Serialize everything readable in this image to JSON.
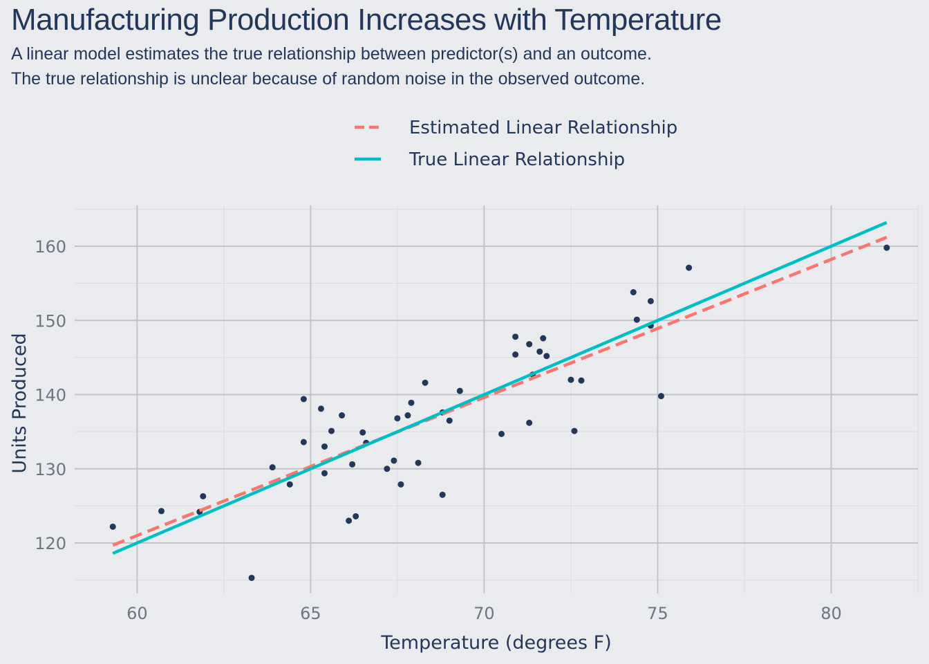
{
  "chart_data": {
    "type": "scatter",
    "title": "Manufacturing Production Increases with Temperature",
    "subtitle_lines": [
      "A linear model estimates the true relationship between predictor(s) and an outcome.",
      "The true relationship is unclear because of random noise in the observed outcome."
    ],
    "xlabel": "Temperature (degrees F)",
    "ylabel": "Units Produced",
    "xlim": [
      58.2,
      82.5
    ],
    "ylim": [
      113.2,
      165.5
    ],
    "x_ticks": [
      60,
      65,
      70,
      75,
      80
    ],
    "y_ticks": [
      120,
      130,
      140,
      150,
      160
    ],
    "x_tick_labels": [
      "60",
      "65",
      "70",
      "75",
      "80"
    ],
    "y_tick_labels": [
      "120",
      "130",
      "140",
      "150",
      "160"
    ],
    "grid": true,
    "legend_position": "top",
    "legend": [
      {
        "label": "Estimated Linear Relationship",
        "color": "#F8766D",
        "style": "dashed"
      },
      {
        "label": "True Linear Relationship",
        "color": "#00BFC4",
        "style": "solid"
      }
    ],
    "points_color": "#22375A",
    "points": [
      {
        "x": 59.3,
        "y": 122.2
      },
      {
        "x": 60.7,
        "y": 124.3
      },
      {
        "x": 61.8,
        "y": 124.2
      },
      {
        "x": 61.9,
        "y": 126.3
      },
      {
        "x": 63.3,
        "y": 115.3
      },
      {
        "x": 63.9,
        "y": 130.2
      },
      {
        "x": 64.4,
        "y": 127.9
      },
      {
        "x": 64.8,
        "y": 133.6
      },
      {
        "x": 64.8,
        "y": 139.4
      },
      {
        "x": 65.3,
        "y": 138.1
      },
      {
        "x": 65.4,
        "y": 133.0
      },
      {
        "x": 65.4,
        "y": 129.4
      },
      {
        "x": 65.6,
        "y": 135.1
      },
      {
        "x": 65.9,
        "y": 137.2
      },
      {
        "x": 66.1,
        "y": 123.0
      },
      {
        "x": 66.2,
        "y": 130.6
      },
      {
        "x": 66.3,
        "y": 123.6
      },
      {
        "x": 66.5,
        "y": 134.9
      },
      {
        "x": 66.6,
        "y": 133.5
      },
      {
        "x": 67.2,
        "y": 130.0
      },
      {
        "x": 67.4,
        "y": 131.1
      },
      {
        "x": 67.5,
        "y": 136.8
      },
      {
        "x": 67.6,
        "y": 127.9
      },
      {
        "x": 67.8,
        "y": 137.2
      },
      {
        "x": 67.9,
        "y": 138.9
      },
      {
        "x": 68.1,
        "y": 130.8
      },
      {
        "x": 68.3,
        "y": 141.6
      },
      {
        "x": 68.8,
        "y": 126.5
      },
      {
        "x": 68.8,
        "y": 137.6
      },
      {
        "x": 69.0,
        "y": 136.5
      },
      {
        "x": 69.3,
        "y": 140.5
      },
      {
        "x": 70.5,
        "y": 134.7
      },
      {
        "x": 70.9,
        "y": 147.8
      },
      {
        "x": 70.9,
        "y": 145.4
      },
      {
        "x": 71.3,
        "y": 146.8
      },
      {
        "x": 71.3,
        "y": 136.2
      },
      {
        "x": 71.4,
        "y": 142.7
      },
      {
        "x": 71.6,
        "y": 145.8
      },
      {
        "x": 71.7,
        "y": 147.6
      },
      {
        "x": 71.8,
        "y": 145.2
      },
      {
        "x": 72.5,
        "y": 142.0
      },
      {
        "x": 72.6,
        "y": 135.1
      },
      {
        "x": 72.8,
        "y": 141.9
      },
      {
        "x": 74.3,
        "y": 153.8
      },
      {
        "x": 74.4,
        "y": 150.1
      },
      {
        "x": 74.8,
        "y": 152.6
      },
      {
        "x": 74.8,
        "y": 149.3
      },
      {
        "x": 75.1,
        "y": 139.8
      },
      {
        "x": 75.9,
        "y": 157.1
      },
      {
        "x": 81.6,
        "y": 159.8
      }
    ],
    "series": [
      {
        "name": "Estimated Linear Relationship",
        "x": [
          59.3,
          81.6
        ],
        "y": [
          119.7,
          161.2
        ]
      },
      {
        "name": "True Linear Relationship",
        "x": [
          59.3,
          81.6
        ],
        "y": [
          118.6,
          163.2
        ]
      }
    ]
  }
}
